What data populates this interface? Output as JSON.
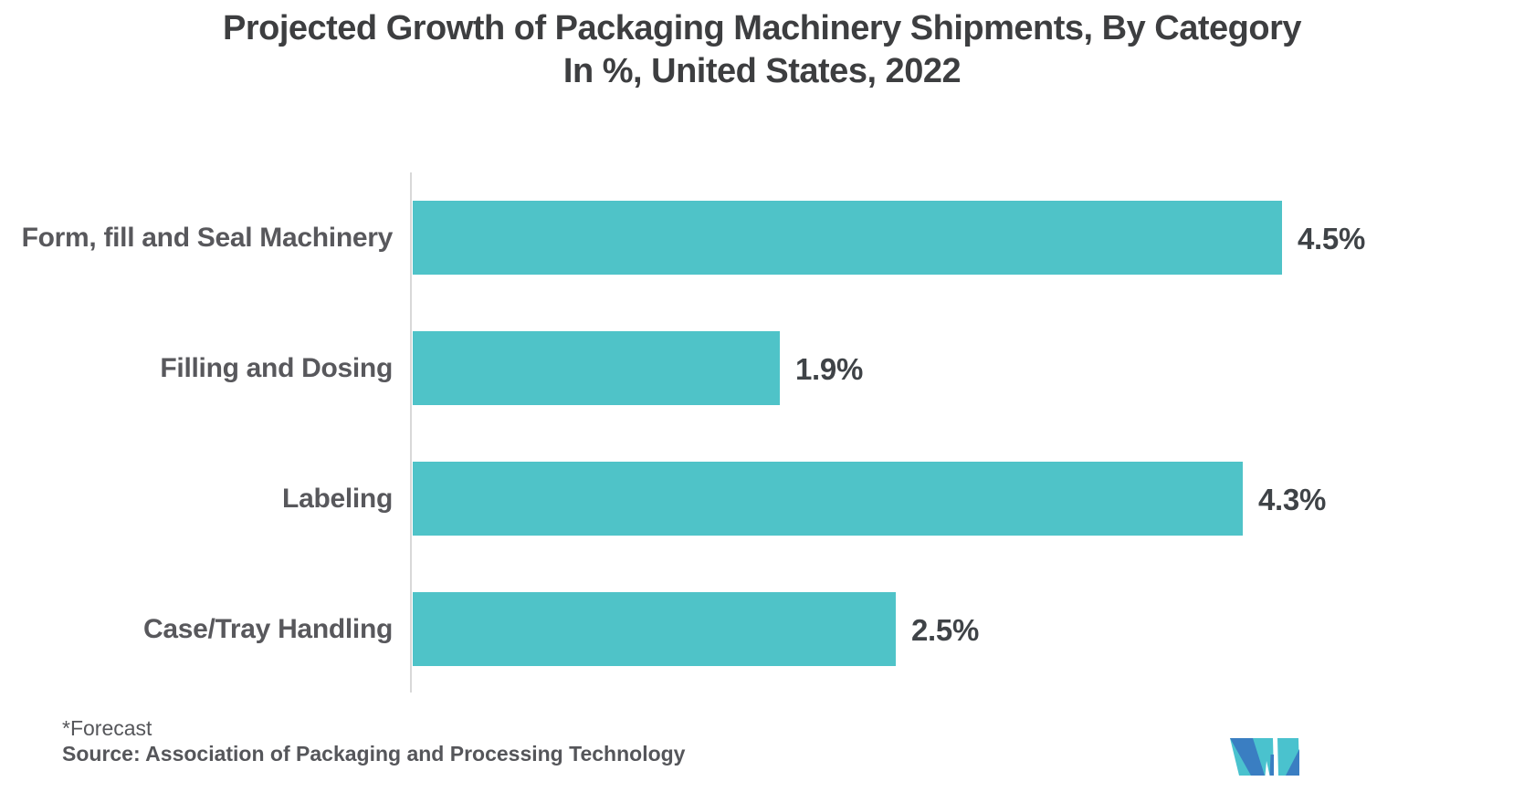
{
  "title": {
    "line1": "Projected Growth of Packaging Machinery Shipments, By Category",
    "line2": "In %, United States, 2022"
  },
  "chart_data": {
    "type": "bar",
    "orientation": "horizontal",
    "title": "Projected Growth of Packaging Machinery Shipments, By Category",
    "subtitle": "In %, United States, 2022",
    "categories": [
      "Form, fill and Seal Machinery",
      "Filling and Dosing",
      "Labeling",
      "Case/Tray Handling"
    ],
    "values": [
      4.5,
      1.9,
      4.3,
      2.5
    ],
    "value_labels": [
      "4.5%",
      "1.9%",
      "4.3%",
      "2.5%"
    ],
    "unit": "%",
    "xlim": [
      0,
      4.8
    ],
    "grid": false,
    "legend": false,
    "value_label_position": "outside-end",
    "bar_color": "#4FC3C8"
  },
  "footnote": {
    "forecast": "*Forecast",
    "source": "Source: Association of Packaging and Processing Technology"
  },
  "logo": {
    "name": "mordor-intelligence-monogram",
    "blue": "#3A7EC2",
    "teal": "#4AC2CE"
  },
  "colors": {
    "background": "#FFFFFF",
    "title_text": "#3D3E40",
    "category_text": "#58585C",
    "value_text": "#3F4347",
    "footnote_text": "#55565A",
    "axis_line": "#D8D8D8"
  }
}
